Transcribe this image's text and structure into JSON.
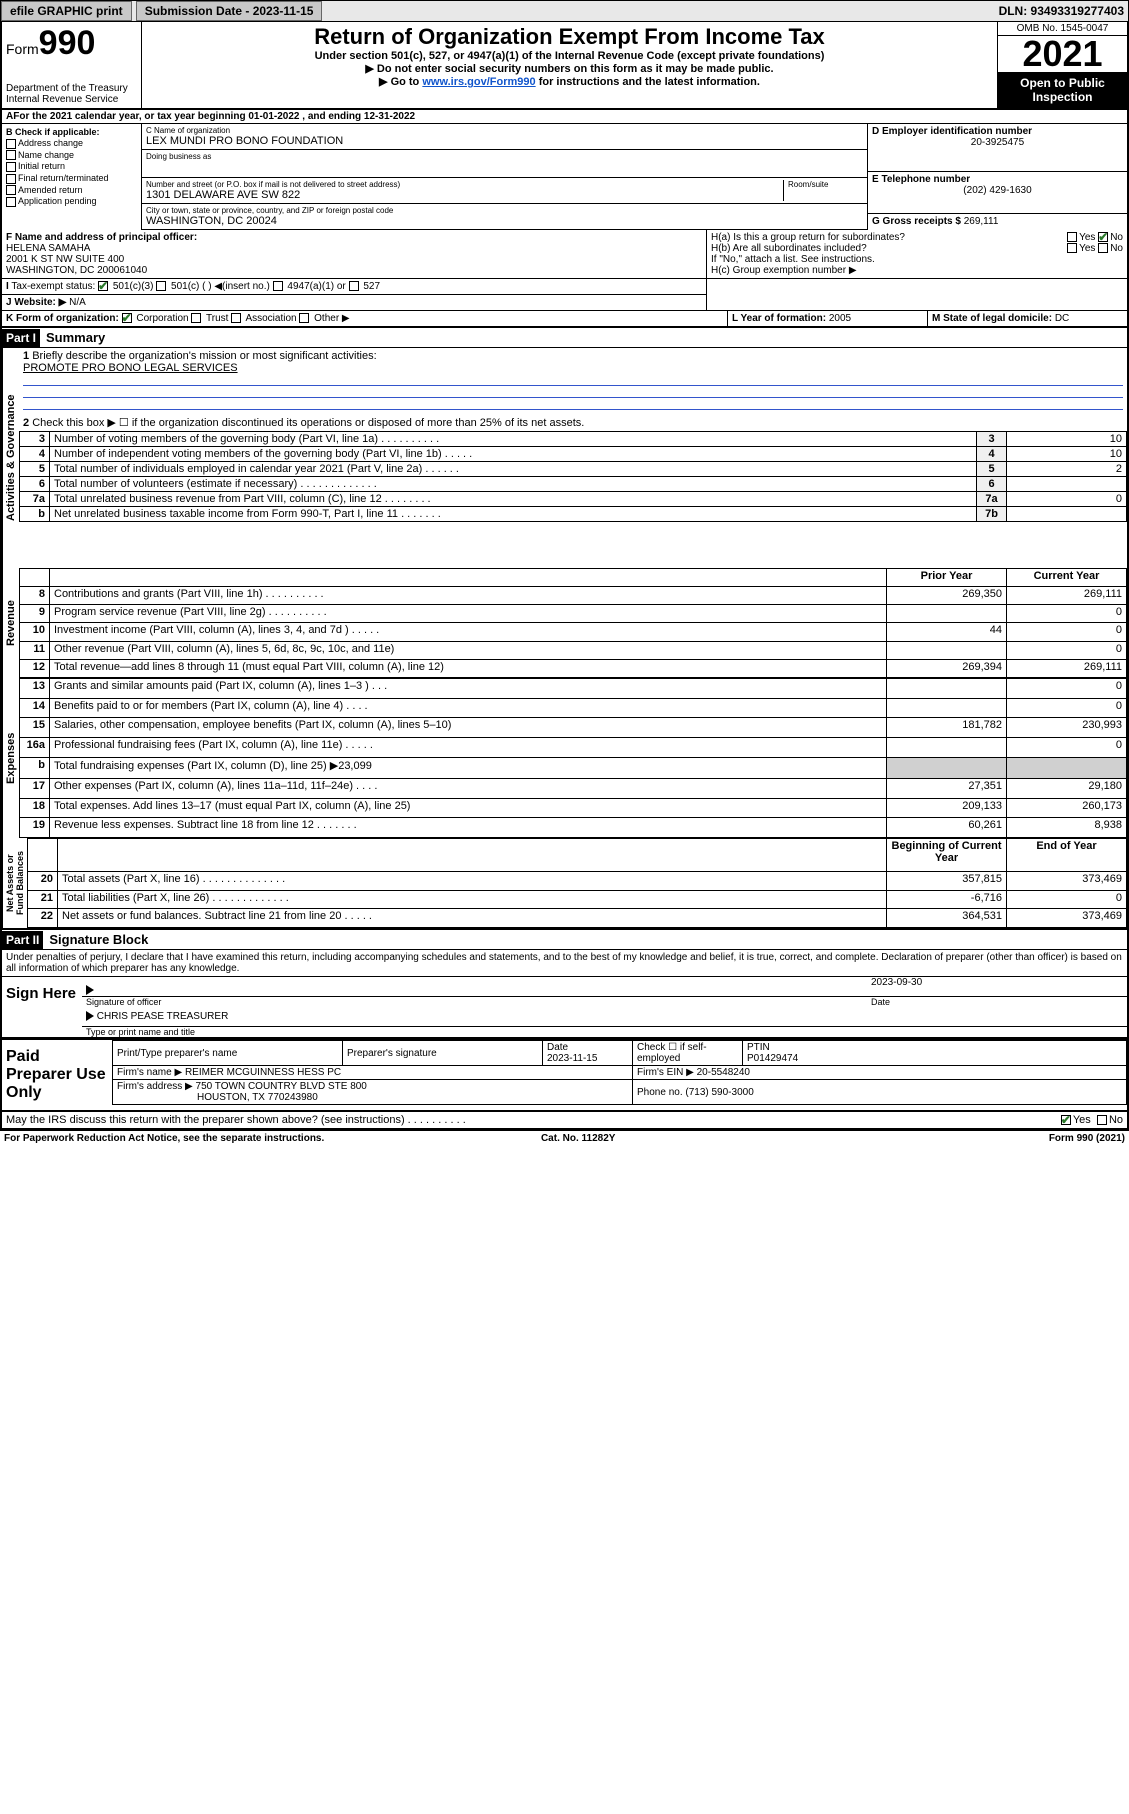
{
  "topbar": {
    "efile": "efile GRAPHIC print",
    "submission_label": "Submission Date - 2023-11-15",
    "dln": "DLN: 93493319277403"
  },
  "header": {
    "form_word": "Form",
    "form_num": "990",
    "dept": "Department of the Treasury\nInternal Revenue Service",
    "title": "Return of Organization Exempt From Income Tax",
    "subtitle": "Under section 501(c), 527, or 4947(a)(1) of the Internal Revenue Code (except private foundations)",
    "line1": "▶ Do not enter social security numbers on this form as it may be made public.",
    "line2_pre": "▶ Go to ",
    "line2_link": "www.irs.gov/Form990",
    "line2_post": " for instructions and the latest information.",
    "omb": "OMB No. 1545-0047",
    "year": "2021",
    "open": "Open to Public Inspection"
  },
  "A": {
    "text": "For the 2021 calendar year, or tax year beginning 01-01-2022   , and ending 12-31-2022"
  },
  "B": {
    "label": "B Check if applicable:",
    "items": [
      "Address change",
      "Name change",
      "Initial return",
      "Final return/terminated",
      "Amended return",
      "Application pending"
    ]
  },
  "C": {
    "name_label": "C Name of organization",
    "name": "LEX MUNDI PRO BONO FOUNDATION",
    "dba_label": "Doing business as",
    "dba": "",
    "street_label": "Number and street (or P.O. box if mail is not delivered to street address)",
    "room_label": "Room/suite",
    "street": "1301 DELAWARE AVE SW 822",
    "city_label": "City or town, state or province, country, and ZIP or foreign postal code",
    "city": "WASHINGTON, DC  20024"
  },
  "D": {
    "label": "D Employer identification number",
    "value": "20-3925475"
  },
  "E": {
    "label": "E Telephone number",
    "value": "(202) 429-1630"
  },
  "G": {
    "label": "G Gross receipts $ ",
    "value": "269,111"
  },
  "F": {
    "label": "F  Name and address of principal officer:",
    "name": "HELENA SAMAHA",
    "addr1": "2001 K ST NW SUITE 400",
    "addr2": "WASHINGTON, DC  200061040"
  },
  "H": {
    "a": "H(a)  Is this a group return for subordinates?",
    "a_yes": "Yes",
    "a_no": "No",
    "b": "H(b)  Are all subordinates included?",
    "b_yes": "Yes",
    "b_no": "No",
    "b_note": "If \"No,\" attach a list. See instructions.",
    "c": "H(c)  Group exemption number ▶"
  },
  "I": {
    "label": "Tax-exempt status:",
    "opts": [
      "501(c)(3)",
      "501(c) (  ) ◀(insert no.)",
      "4947(a)(1) or",
      "527"
    ]
  },
  "J": {
    "label": "Website: ▶",
    "value": "N/A"
  },
  "K": {
    "label": "K Form of organization:",
    "opts": [
      "Corporation",
      "Trust",
      "Association",
      "Other ▶"
    ]
  },
  "L": {
    "label": "L Year of formation: ",
    "value": "2005"
  },
  "M": {
    "label": "M State of legal domicile: ",
    "value": "DC"
  },
  "part1": {
    "hdr": "Part I",
    "title": "Summary",
    "tabs": {
      "gov": "Activities & Governance",
      "rev": "Revenue",
      "exp": "Expenses",
      "net": "Net Assets or Fund Balances"
    },
    "l1": "Briefly describe the organization's mission or most significant activities:",
    "l1val": "PROMOTE PRO BONO LEGAL SERVICES",
    "l2": "Check this box ▶ ☐  if the organization discontinued its operations or disposed of more than 25% of its net assets.",
    "rows_gov": [
      {
        "n": "3",
        "d": "Number of voting members of the governing body (Part VI, line 1a)  .   .   .   .   .   .   .   .   .   .",
        "ln": "3",
        "a": "10"
      },
      {
        "n": "4",
        "d": "Number of independent voting members of the governing body (Part VI, line 1b)   .   .   .   .   .",
        "ln": "4",
        "a": "10"
      },
      {
        "n": "5",
        "d": "Total number of individuals employed in calendar year 2021 (Part V, line 2a)   .   .   .   .   .   .",
        "ln": "5",
        "a": "2"
      },
      {
        "n": "6",
        "d": "Total number of volunteers (estimate if necessary)   .   .   .   .   .   .   .   .   .   .   .   .   .",
        "ln": "6",
        "a": ""
      },
      {
        "n": "7a",
        "d": "Total unrelated business revenue from Part VIII, column (C), line 12   .   .   .   .   .   .   .   .",
        "ln": "7a",
        "a": "0"
      },
      {
        "n": "b",
        "d": "Net unrelated business taxable income from Form 990-T, Part I, line 11   .   .   .   .   .   .   .",
        "ln": "7b",
        "a": ""
      }
    ],
    "colhdr": {
      "prior": "Prior Year",
      "curr": "Current Year"
    },
    "rows_rev": [
      {
        "n": "8",
        "d": "Contributions and grants (Part VIII, line 1h)   .   .   .   .   .   .   .   .   .   .",
        "p": "269,350",
        "c": "269,111"
      },
      {
        "n": "9",
        "d": "Program service revenue (Part VIII, line 2g)   .   .   .   .   .   .   .   .   .   .",
        "p": "",
        "c": "0"
      },
      {
        "n": "10",
        "d": "Investment income (Part VIII, column (A), lines 3, 4, and 7d )   .   .   .   .   .",
        "p": "44",
        "c": "0"
      },
      {
        "n": "11",
        "d": "Other revenue (Part VIII, column (A), lines 5, 6d, 8c, 9c, 10c, and 11e)",
        "p": "",
        "c": "0"
      },
      {
        "n": "12",
        "d": "Total revenue—add lines 8 through 11 (must equal Part VIII, column (A), line 12)",
        "p": "269,394",
        "c": "269,111"
      }
    ],
    "rows_exp": [
      {
        "n": "13",
        "d": "Grants and similar amounts paid (Part IX, column (A), lines 1–3 )   .   .   .",
        "p": "",
        "c": "0"
      },
      {
        "n": "14",
        "d": "Benefits paid to or for members (Part IX, column (A), line 4)   .   .   .   .",
        "p": "",
        "c": "0"
      },
      {
        "n": "15",
        "d": "Salaries, other compensation, employee benefits (Part IX, column (A), lines 5–10)",
        "p": "181,782",
        "c": "230,993"
      },
      {
        "n": "16a",
        "d": "Professional fundraising fees (Part IX, column (A), line 11e)   .   .   .   .   .",
        "p": "",
        "c": "0"
      },
      {
        "n": "b",
        "d": "Total fundraising expenses (Part IX, column (D), line 25) ▶23,099",
        "p": "shade",
        "c": "shade"
      },
      {
        "n": "17",
        "d": "Other expenses (Part IX, column (A), lines 11a–11d, 11f–24e)   .   .   .   .",
        "p": "27,351",
        "c": "29,180"
      },
      {
        "n": "18",
        "d": "Total expenses. Add lines 13–17 (must equal Part IX, column (A), line 25)",
        "p": "209,133",
        "c": "260,173"
      },
      {
        "n": "19",
        "d": "Revenue less expenses. Subtract line 18 from line 12   .   .   .   .   .   .   .",
        "p": "60,261",
        "c": "8,938"
      }
    ],
    "colhdr2": {
      "beg": "Beginning of Current Year",
      "end": "End of Year"
    },
    "rows_net": [
      {
        "n": "20",
        "d": "Total assets (Part X, line 16)   .   .   .   .   .   .   .   .   .   .   .   .   .   .",
        "p": "357,815",
        "c": "373,469"
      },
      {
        "n": "21",
        "d": "Total liabilities (Part X, line 26)   .   .   .   .   .   .   .   .   .   .   .   .   .",
        "p": "-6,716",
        "c": "0"
      },
      {
        "n": "22",
        "d": "Net assets or fund balances. Subtract line 21 from line 20   .   .   .   .   .",
        "p": "364,531",
        "c": "373,469"
      }
    ]
  },
  "part2": {
    "hdr": "Part II",
    "title": "Signature Block",
    "penalty": "Under penalties of perjury, I declare that I have examined this return, including accompanying schedules and statements, and to the best of my knowledge and belief, it is true, correct, and complete. Declaration of preparer (other than officer) is based on all information of which preparer has any knowledge.",
    "sign_here": "Sign Here",
    "sig_officer": "Signature of officer",
    "sig_date": "2023-09-30",
    "date_label": "Date",
    "officer_name": "CHRIS PEASE  TREASURER",
    "officer_sub": "Type or print name and title",
    "paid": "Paid Preparer Use Only",
    "prep_cols": {
      "name": "Print/Type preparer's name",
      "sig": "Preparer's signature",
      "date": "Date",
      "date_val": "2023-11-15",
      "check": "Check ☐ if self-employed",
      "ptin": "PTIN",
      "ptin_val": "P01429474"
    },
    "firm_name_label": "Firm's name    ▶",
    "firm_name": "REIMER MCGUINNESS HESS PC",
    "firm_ein_label": "Firm's EIN ▶",
    "firm_ein": "20-5548240",
    "firm_addr_label": "Firm's address ▶",
    "firm_addr1": "750 TOWN COUNTRY BLVD STE 800",
    "firm_addr2": "HOUSTON, TX  770243980",
    "phone_label": "Phone no. ",
    "phone": "(713) 590-3000",
    "discuss": "May the IRS discuss this return with the preparer shown above? (see instructions)   .   .   .   .   .   .   .   .   .   .",
    "discuss_yes": "Yes",
    "discuss_no": "No"
  },
  "footer": {
    "left": "For Paperwork Reduction Act Notice, see the separate instructions.",
    "mid": "Cat. No. 11282Y",
    "right": "Form 990 (2021)"
  }
}
